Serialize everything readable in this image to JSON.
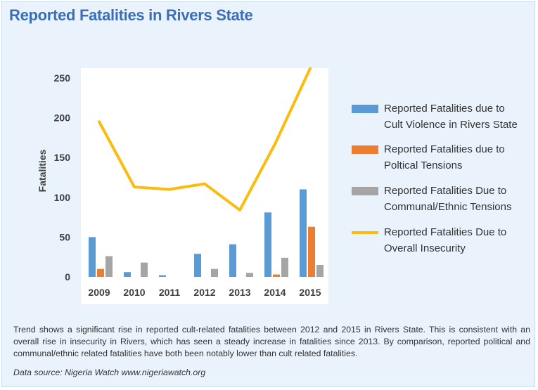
{
  "title": "Reported Fatalities in Rivers State",
  "chart_data": {
    "type": "bar",
    "categories": [
      "2009",
      "2010",
      "2011",
      "2012",
      "2013",
      "2014",
      "2015"
    ],
    "series": [
      {
        "name": "Reported Fatalities due to Cult Violence in Rivers State",
        "type": "bar",
        "color": "#5b9bd5",
        "values": [
          50,
          6,
          2,
          29,
          41,
          81,
          110
        ]
      },
      {
        "name": "Reported Fatalities due to Political Tensions",
        "type": "bar",
        "color": "#ed7d31",
        "values": [
          10,
          0,
          0,
          0,
          0,
          3,
          63
        ]
      },
      {
        "name": "Reported Fatalities Due to Communal/Ethnic Tensions",
        "type": "bar",
        "color": "#a5a5a5",
        "values": [
          26,
          18,
          0,
          10,
          5,
          24,
          15
        ]
      },
      {
        "name": "Reported Fatalities Due to Overall Insecurity",
        "type": "line",
        "color": "#fbbc0e",
        "values": [
          195,
          113,
          110,
          117,
          84,
          167,
          262
        ]
      }
    ],
    "ylabel": "Fatalities",
    "xlabel": "",
    "ylim": [
      0,
      260
    ],
    "yticks": [
      "0",
      "50",
      "100",
      "150",
      "200",
      "250"
    ],
    "grid": false,
    "legend": "right"
  },
  "legend": [
    {
      "line1": "Reported Fatalities due to",
      "line2": "Cult Violence in Rivers State",
      "color": "#5b9bd5",
      "kind": "box"
    },
    {
      "line1": "Reported Fatalities due to",
      "line2": "Poltical Tensions",
      "color": "#ed7d31",
      "kind": "box"
    },
    {
      "line1": "Reported Fatalities Due to",
      "line2": "Communal/Ethnic Tensions",
      "color": "#a5a5a5",
      "kind": "box"
    },
    {
      "line1": "Reported Fatalities Due to",
      "line2": "Overall Insecurity",
      "color": "#fbbc0e",
      "kind": "line"
    }
  ],
  "caption": "Trend shows  a significant rise in reported cult-related fatalities between 2012 and 2015 in Rivers State. This is consistent with an overall rise in insecurity in Rivers, which has seen a steady increase in fatalities since 2013. By comparison, reported political and communal/ethnic related fatalities have both been notably lower than cult related fatalities.",
  "source": "Data source: Nigeria Watch www.nigeriawatch.org"
}
